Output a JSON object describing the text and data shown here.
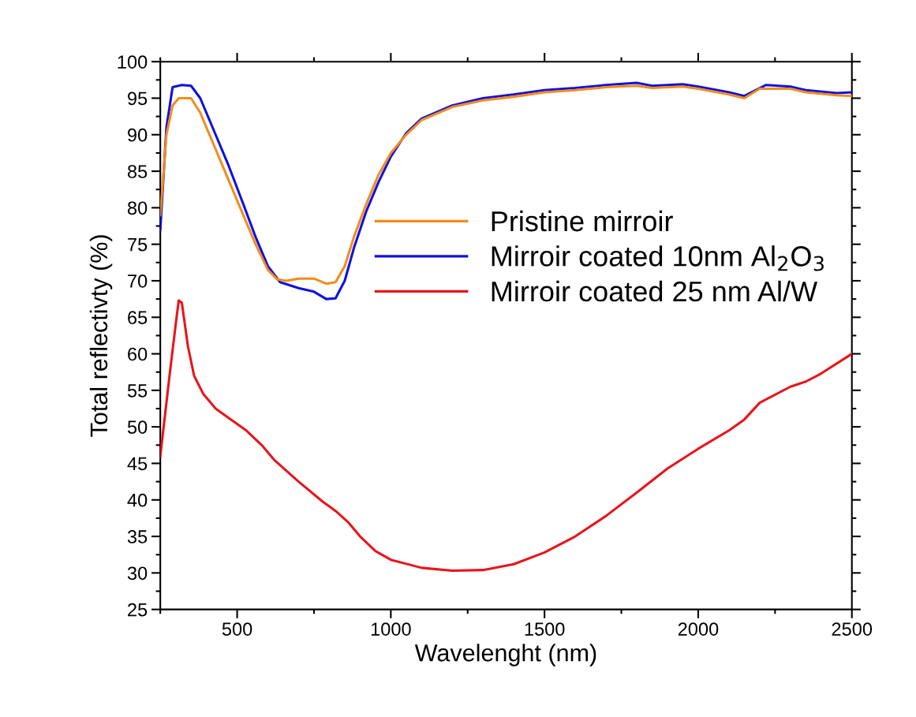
{
  "chart_data": {
    "type": "line",
    "xlabel": "Wavelenght (nm)",
    "ylabel": "Total reflectivty (%)",
    "xlim": [
      250,
      2500
    ],
    "xticks": [
      500,
      1000,
      1500,
      2000,
      2500
    ],
    "ylim": [
      25,
      100
    ],
    "yticks": [
      25,
      30,
      35,
      40,
      45,
      50,
      55,
      60,
      65,
      70,
      75,
      80,
      85,
      90,
      95,
      100
    ],
    "grid": false,
    "legend": "center right",
    "marker": "none",
    "line_style": "solid",
    "series": [
      {
        "name": "Pristine mirroir",
        "color": "#f28c1c",
        "x": [
          250,
          270,
          290,
          310,
          350,
          380,
          420,
          470,
          520,
          560,
          600,
          630,
          660,
          700,
          750,
          790,
          820,
          850,
          880,
          920,
          960,
          1000,
          1050,
          1100,
          1200,
          1300,
          1400,
          1500,
          1600,
          1700,
          1800,
          1850,
          1950,
          2000,
          2100,
          2150,
          2200,
          2300,
          2350,
          2450,
          2500
        ],
        "values": [
          79,
          90,
          94,
          95,
          95,
          93,
          89,
          84,
          79,
          75,
          71.5,
          70.2,
          70,
          70.3,
          70.3,
          69.6,
          69.8,
          72,
          76,
          80.5,
          84.5,
          87.5,
          90,
          92,
          93.8,
          94.7,
          95.2,
          95.8,
          96.1,
          96.5,
          96.7,
          96.4,
          96.6,
          96.3,
          95.5,
          95,
          96.3,
          96.3,
          95.8,
          95.4,
          95.3
        ]
      },
      {
        "name": "Mirroir coated 10nm Al$_{2}$O$_{3}$",
        "color": "#1010e0",
        "x": [
          250,
          270,
          290,
          320,
          350,
          380,
          420,
          470,
          520,
          560,
          600,
          640,
          700,
          750,
          790,
          820,
          850,
          880,
          920,
          960,
          1000,
          1050,
          1100,
          1200,
          1300,
          1400,
          1500,
          1600,
          1700,
          1800,
          1850,
          1950,
          2000,
          2100,
          2150,
          2220,
          2300,
          2350,
          2450,
          2500
        ],
        "values": [
          77,
          91,
          96.5,
          96.8,
          96.7,
          95,
          91,
          86,
          80.5,
          76,
          72,
          69.8,
          69,
          68.5,
          67.5,
          67.6,
          70,
          74.5,
          79.5,
          83.5,
          87,
          90.2,
          92.2,
          94,
          95,
          95.5,
          96.1,
          96.4,
          96.8,
          97.1,
          96.7,
          96.9,
          96.6,
          95.8,
          95.3,
          96.8,
          96.6,
          96.1,
          95.7,
          95.8
        ]
      },
      {
        "name": "Mirroir coated 25 nm Al/W",
        "color": "#e8141c",
        "x": [
          250,
          280,
          300,
          310,
          320,
          340,
          360,
          390,
          430,
          480,
          530,
          580,
          620,
          700,
          780,
          800,
          820,
          860,
          900,
          950,
          1000,
          1100,
          1200,
          1300,
          1400,
          1500,
          1600,
          1700,
          1800,
          1900,
          2000,
          2100,
          2150,
          2200,
          2300,
          2350,
          2400,
          2500
        ],
        "values": [
          46,
          57,
          64,
          67.3,
          67,
          61,
          57,
          54.5,
          52.5,
          51,
          49.5,
          47.5,
          45.5,
          42.5,
          39.7,
          39.1,
          38.5,
          37,
          35,
          33,
          31.8,
          30.7,
          30.3,
          30.4,
          31.2,
          32.8,
          35,
          37.8,
          41,
          44.3,
          47,
          49.5,
          51,
          53.3,
          55.5,
          56.2,
          57.3,
          60
        ]
      }
    ]
  }
}
